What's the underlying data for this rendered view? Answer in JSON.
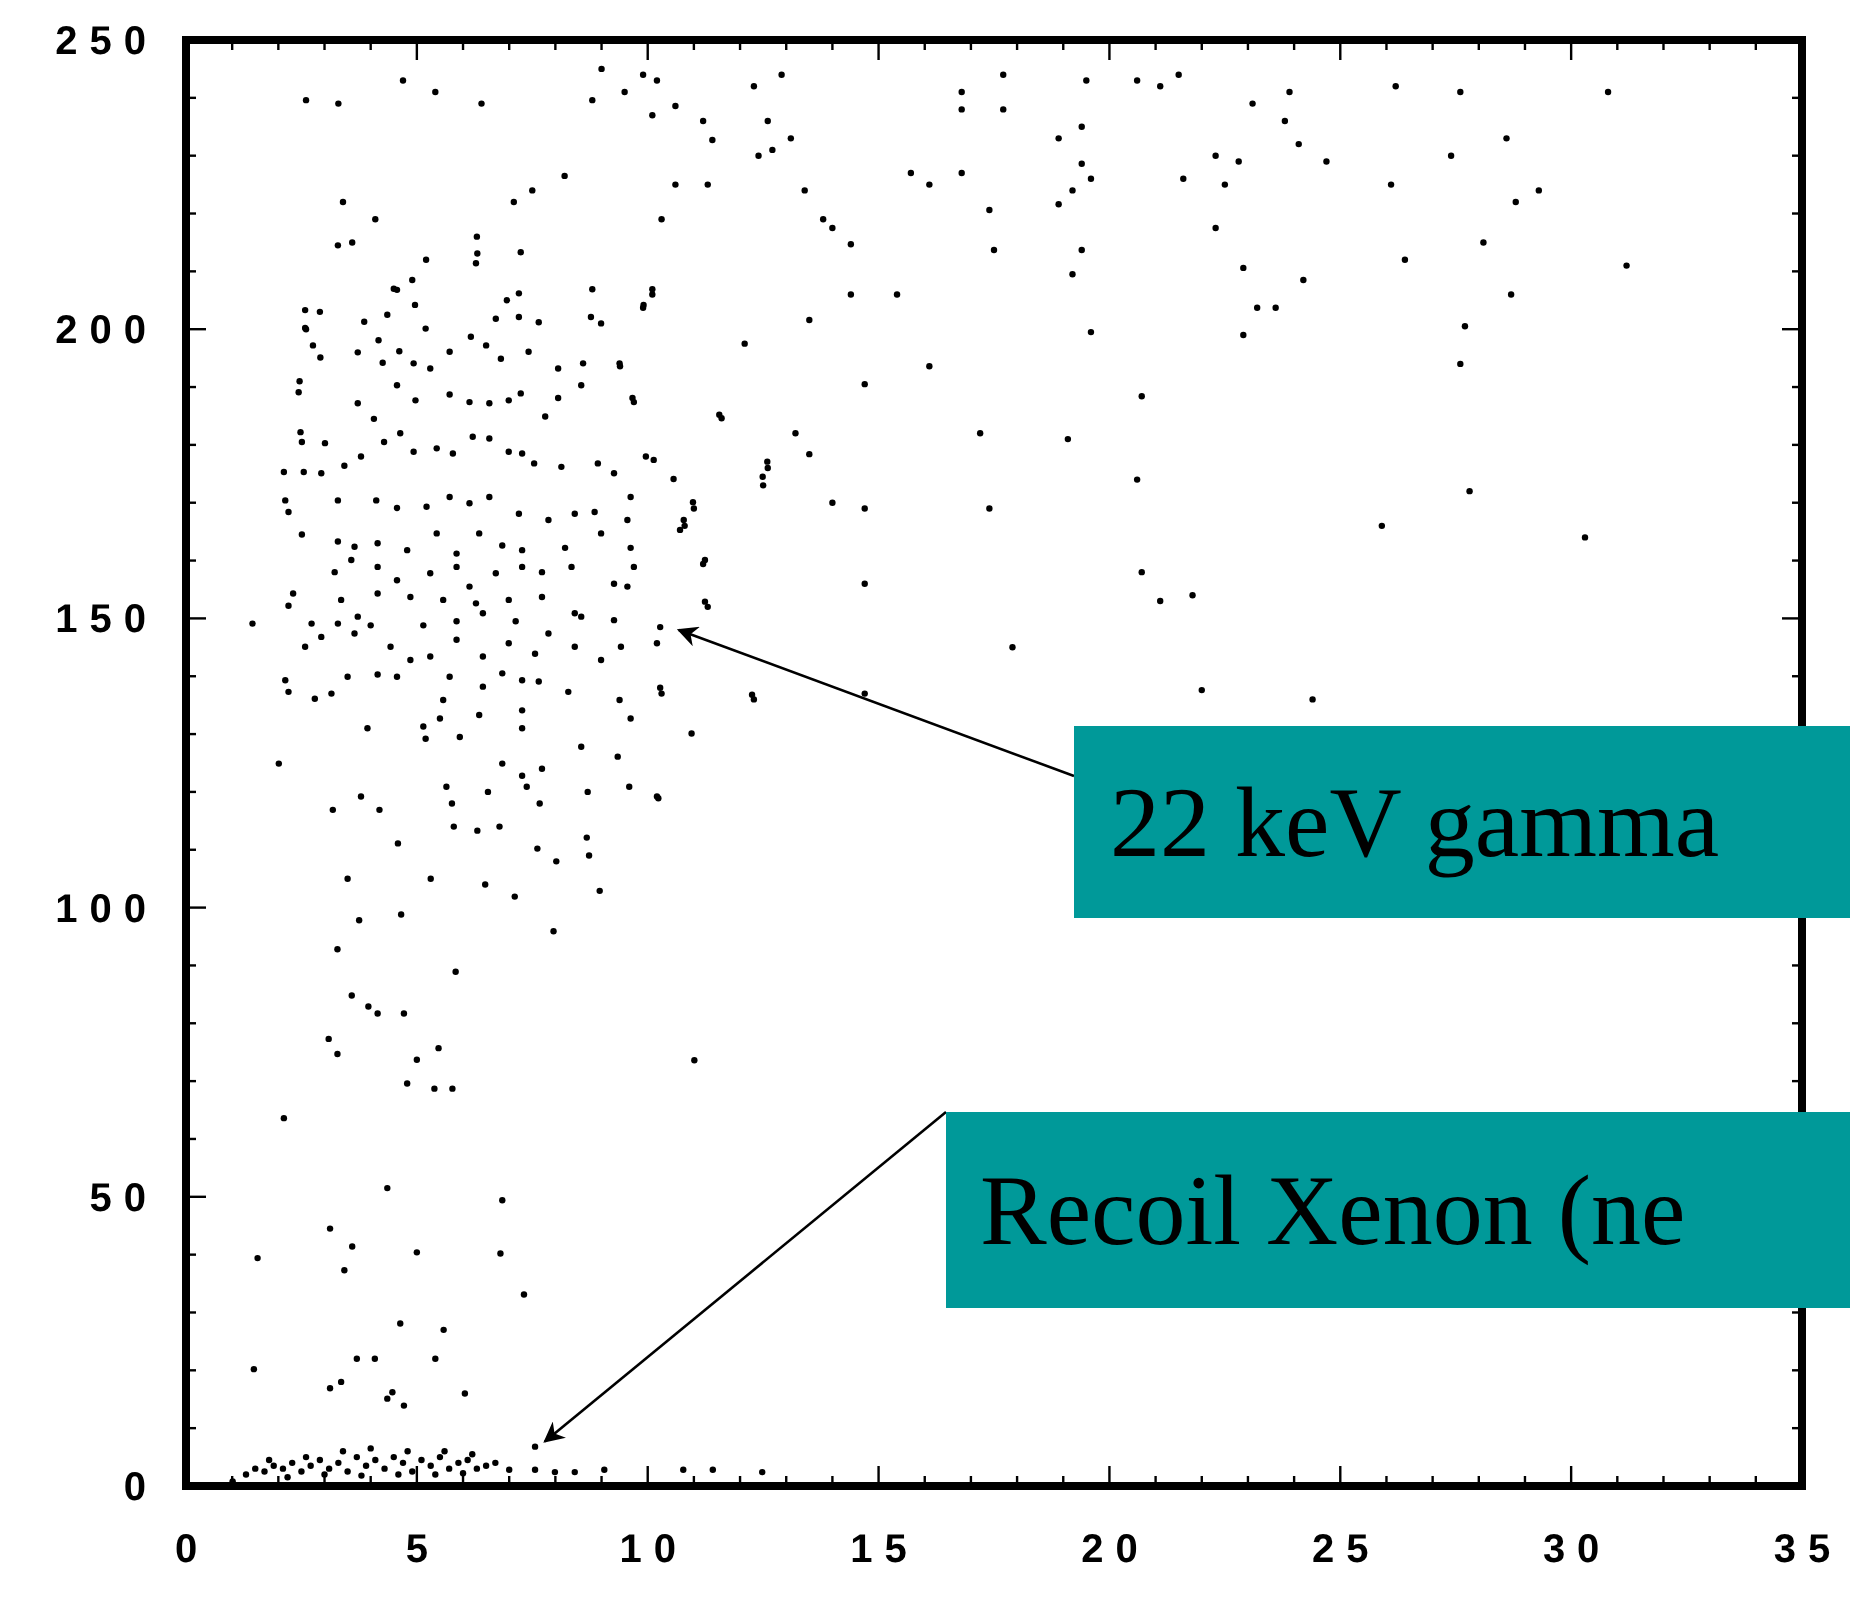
{
  "chart_data": {
    "type": "scatter",
    "marker": "circle",
    "grid": false,
    "xlim": [
      0,
      35
    ],
    "ylim": [
      0,
      250
    ],
    "xticks": [
      0,
      {
        "value": 1,
        "label": null
      },
      {
        "value": 2,
        "label": null
      },
      {
        "value": 3,
        "label": null
      },
      {
        "value": 4,
        "label": null
      },
      5,
      {
        "value": 6,
        "label": null
      },
      {
        "value": 7,
        "label": null
      },
      {
        "value": 8,
        "label": null
      },
      {
        "value": 9,
        "label": null
      },
      10,
      {
        "value": 11,
        "label": null
      },
      {
        "value": 12,
        "label": null
      },
      {
        "value": 13,
        "label": null
      },
      {
        "value": 14,
        "label": null
      },
      15,
      {
        "value": 16,
        "label": null
      },
      {
        "value": 17,
        "label": null
      },
      {
        "value": 18,
        "label": null
      },
      {
        "value": 19,
        "label": null
      },
      20,
      {
        "value": 21,
        "label": null
      },
      {
        "value": 22,
        "label": null
      },
      {
        "value": 23,
        "label": null
      },
      {
        "value": 24,
        "label": null
      },
      25,
      {
        "value": 26,
        "label": null
      },
      {
        "value": 27,
        "label": null
      },
      {
        "value": 28,
        "label": null
      },
      {
        "value": 29,
        "label": null
      },
      30,
      {
        "value": 31,
        "label": null
      },
      {
        "value": 32,
        "label": null
      },
      {
        "value": 33,
        "label": null
      },
      {
        "value": 34,
        "label": null
      },
      35
    ],
    "yticks": [
      0,
      {
        "value": 10,
        "label": null
      },
      {
        "value": 20,
        "label": null
      },
      {
        "value": 30,
        "label": null
      },
      {
        "value": 40,
        "label": null
      },
      50,
      {
        "value": 60,
        "label": null
      },
      {
        "value": 70,
        "label": null
      },
      {
        "value": 80,
        "label": null
      },
      {
        "value": 90,
        "label": null
      },
      100,
      {
        "value": 110,
        "label": null
      },
      {
        "value": 120,
        "label": null
      },
      {
        "value": 130,
        "label": null
      },
      {
        "value": 140,
        "label": null
      },
      150,
      {
        "value": 160,
        "label": null
      },
      {
        "value": 170,
        "label": null
      },
      {
        "value": 180,
        "label": null
      },
      {
        "value": 190,
        "label": null
      },
      200,
      {
        "value": 210,
        "label": null
      },
      {
        "value": 220,
        "label": null
      },
      {
        "value": 230,
        "label": null
      },
      {
        "value": 240,
        "label": null
      },
      250
    ],
    "annotations": [
      {
        "text": "22 keV gamma",
        "x": 10.5,
        "y": 148
      },
      {
        "text": "Recoil Xenon (ne",
        "x": 7.6,
        "y": 7
      }
    ],
    "series": [
      {
        "color": "#000000",
        "x": [
          30.8,
          31.2,
          30.3,
          27.8,
          25.9,
          27.6,
          27.7,
          28.7,
          28.1,
          28.8,
          29.3,
          28.6,
          27.6,
          26.2,
          27.4,
          26.4,
          26.1,
          23.9,
          23.8,
          24.1,
          24.7,
          23.1,
          22.3,
          22.8,
          22.5,
          22.3,
          22.9,
          23.2,
          23.6,
          24.2,
          22.9,
          21.6,
          21.5,
          21.1,
          20.6,
          19.5,
          19.4,
          18.9,
          19.4,
          19.6,
          19.2,
          18.9,
          19.4,
          19.2,
          19.6,
          20.7,
          19.1,
          20.6,
          20.7,
          21.1,
          21.8,
          22.0,
          24.4,
          17.9,
          17.4,
          17.2,
          17.5,
          17.4,
          17.7,
          17.7,
          16.8,
          16.8,
          16.8,
          16.1,
          15.7,
          16.1,
          14.7,
          14.7,
          14.7,
          14.7,
          15.4,
          14.4,
          14.4,
          14.0,
          13.8,
          13.4,
          13.5,
          12.1,
          11.6,
          13.2,
          13.5,
          12.6,
          12.5,
          14.0,
          12.3,
          13.1,
          12.7,
          12.4,
          12.6,
          12.9,
          12.3,
          11.4,
          11.2,
          10.6,
          10.1,
          10.2,
          9.9,
          9.5,
          11.3,
          10.6,
          10.3,
          10.1,
          9.9,
          9.4,
          9.7,
          11.2,
          11.3,
          10.3,
          11.0,
          10.8,
          2.6,
          3.3,
          4.7,
          5.4,
          6.4,
          7.1,
          7.5,
          6.3,
          8.2,
          8.8,
          9.0,
          3.4,
          3.6,
          4.1,
          5.2,
          4.5,
          4.9,
          2.9,
          2.6,
          3.29,
          6.31,
          7.25,
          6.28,
          4.57,
          2.58,
          3.86,
          4.36,
          4.96,
          5.19,
          6.95,
          7.21,
          8.8,
          10.1,
          9.91,
          8.77,
          8.99,
          6.71,
          7.21,
          7.64,
          2.58,
          2.75,
          2.91,
          3.72,
          4.17,
          4.62,
          4.26,
          4.93,
          5.29,
          5.71,
          6.17,
          6.5,
          6.82,
          7.42,
          8.06,
          8.6,
          8.56,
          9.39,
          2.46,
          2.44,
          3.72,
          4.07,
          4.57,
          4.97,
          5.71,
          6.14,
          6.57,
          6.99,
          7.25,
          7.78,
          8.06,
          9.67,
          2.48,
          2.51,
          3.01,
          2.12,
          2.55,
          2.93,
          3.43,
          3.79,
          4.29,
          4.64,
          4.93,
          5.43,
          5.78,
          6.21,
          6.57,
          6.99,
          7.28,
          7.54,
          8.13,
          8.92,
          9.27,
          9.96,
          10.13,
          10.56,
          11.55,
          12.59,
          12.49,
          2.15,
          2.22,
          3.29,
          4.12,
          4.57,
          5.21,
          5.71,
          6.14,
          6.57,
          7.21,
          7.85,
          8.42,
          8.85,
          9.63,
          9.56,
          10.98,
          10.78,
          2.51,
          3.29,
          3.65,
          4.15,
          4.79,
          5.43,
          5.86,
          6.35,
          6.85,
          7.28,
          8.21,
          8.99,
          9.63,
          10.7,
          3.22,
          3.58,
          4.15,
          4.57,
          5.29,
          5.86,
          6.14,
          6.71,
          7.28,
          7.71,
          8.35,
          9.7,
          11.24,
          2.22,
          2.32,
          3.36,
          4.15,
          4.86,
          5.57,
          6.28,
          6.99,
          7.71,
          8.42,
          9.27,
          9.56,
          11.24,
          1.44,
          2.72,
          3.29,
          3.72,
          4.0,
          5.14,
          5.86,
          6.43,
          7.14,
          7.85,
          8.56,
          9.27,
          10.27,
          10.2,
          2.58,
          2.93,
          3.65,
          4.43,
          4.86,
          5.29,
          5.86,
          6.43,
          6.99,
          7.56,
          8.42,
          8.99,
          9.42,
          2.15,
          2.22,
          2.79,
          3.15,
          3.5,
          4.15,
          4.57,
          5.71,
          6.43,
          6.85,
          7.28,
          7.64,
          8.28,
          9.39,
          12.26,
          10.27,
          5.57,
          6.35,
          7.28,
          5.5,
          5.14,
          5.93,
          5.19,
          7.28,
          9.63,
          3.93,
          10.95,
          2.01,
          6.85,
          7.28,
          7.71,
          8.56,
          9.35,
          9.6,
          5.64,
          6.54,
          3.79,
          8.7,
          10.2,
          3.18,
          4.19,
          5.76,
          7.38,
          7.66,
          10.23,
          5.8,
          6.31,
          6.79,
          8.68,
          8.73,
          7.61,
          8.02,
          4.59,
          3.5,
          5.3,
          6.48,
          7.12,
          8.96,
          3.75,
          4.66,
          7.96,
          3.28,
          5.84,
          3.59,
          3.95,
          4.15,
          4.72,
          3.09,
          3.28,
          5.0,
          5.47,
          4.79,
          5.38,
          5.77,
          11.01,
          2.12,
          4.36,
          6.85,
          3.12,
          3.6,
          1.55,
          3.43,
          5.0,
          6.81,
          7.32,
          4.64,
          5.58,
          1.47,
          3.7,
          4.09,
          5.4,
          3.12,
          3.36,
          4.36,
          4.47,
          4.72,
          6.04,
          7.56,
          1.01,
          7.0,
          7.56,
          7.99,
          8.42,
          9.06,
          10.77,
          11.41,
          12.48,
          1.3,
          1.5,
          1.7,
          1.9,
          2.1,
          2.3,
          2.5,
          2.7,
          2.9,
          3.1,
          3.3,
          3.5,
          3.7,
          3.9,
          4.1,
          4.3,
          4.5,
          4.7,
          4.9,
          5.1,
          5.3,
          5.5,
          5.7,
          5.9,
          6.1,
          6.3,
          6.5,
          6.7,
          1.8,
          2.6,
          3.4,
          4.0,
          4.8,
          5.6,
          6.2,
          2.2,
          3.0,
          3.8,
          4.6,
          5.4,
          6.0
        ],
        "values": [
          241,
          211,
          164,
          172,
          166,
          194,
          200.5,
          206,
          215,
          222,
          224,
          233,
          241,
          242,
          230,
          212,
          225,
          241,
          236,
          232,
          229,
          239,
          230,
          229,
          225,
          217.5,
          210.6,
          203.7,
          203.7,
          208.5,
          199,
          226,
          244,
          242,
          243,
          243,
          235,
          233,
          228.6,
          226,
          224,
          221.6,
          213.7,
          209.5,
          199.5,
          188.4,
          181,
          174,
          158,
          153,
          154,
          137.6,
          136,
          145,
          169,
          182,
          213.7,
          220.6,
          238,
          244,
          238,
          241,
          227,
          225,
          227,
          193.6,
          190.5,
          169,
          156,
          137,
          206,
          206,
          214.7,
          217.5,
          219,
          224,
          201.6,
          197.5,
          184.6,
          182,
          178.4,
          176,
          173,
          170,
          136,
          233,
          231,
          230,
          236,
          244,
          242,
          232.7,
          236,
          238.6,
          237,
          243,
          244,
          241,
          225,
          225,
          219,
          206,
          203.7,
          193.6,
          187.4,
          159.4,
          152,
          137,
          169,
          166,
          239.6,
          239,
          243,
          241,
          239,
          222,
          224,
          216,
          226.5,
          239.6,
          245,
          222,
          215,
          219,
          212,
          207,
          208.5,
          203,
          200,
          214.5,
          213.1,
          213.3,
          211.4,
          206.8,
          203.3,
          201.3,
          202.5,
          204.2,
          200.1,
          205,
          206.2,
          206.9,
          206.9,
          204.2,
          202.1,
          201,
          201.8,
          202.1,
          201.2,
          200.2,
          197.2,
          195.1,
          196,
          198.1,
          196.2,
          194.2,
          194.1,
          193.2,
          196.1,
          198.7,
          197.2,
          194.9,
          196.1,
          193.2,
          194.1,
          190.3,
          194.1,
          191,
          189.1,
          187.2,
          184.5,
          190.3,
          187.7,
          188.7,
          187.4,
          187.2,
          187.7,
          188.9,
          184.9,
          188.1,
          188.1,
          182.2,
          180.5,
          180.3,
          175.3,
          175.3,
          175.1,
          176.4,
          178,
          180.5,
          182,
          178.8,
          179.4,
          178.5,
          181.4,
          181.1,
          178.8,
          178.5,
          176.8,
          176.2,
          176.8,
          175.1,
          178,
          177.4,
          174.1,
          185.2,
          177.1,
          174.5,
          170.4,
          168.4,
          170.4,
          170.4,
          169.1,
          169.3,
          171,
          169.9,
          171,
          168.1,
          167,
          168.1,
          168.4,
          171,
          167,
          170.1,
          167,
          164.5,
          163.3,
          162.4,
          163,
          161.8,
          164.7,
          161.2,
          164.7,
          162.6,
          161.8,
          162.2,
          164.7,
          162.2,
          165.3,
          158,
          160.1,
          158.9,
          156.6,
          157.8,
          158.9,
          155.5,
          157.8,
          158.9,
          158,
          158.9,
          158.9,
          160.1,
          152.2,
          154.3,
          153.2,
          154.3,
          153.7,
          153.2,
          152.6,
          153.2,
          153.7,
          150.9,
          156,
          155.5,
          152.9,
          149.1,
          149.1,
          149.1,
          150.3,
          148.8,
          148.8,
          149.5,
          150.9,
          149.5,
          147.4,
          150.3,
          149.7,
          148.5,
          145.7,
          145.1,
          146.8,
          147.4,
          145.1,
          142.8,
          143.4,
          146.3,
          143.4,
          145.7,
          143.9,
          145.1,
          142.8,
          145.1,
          139.3,
          137.3,
          136.1,
          137,
          139.9,
          140.3,
          139.9,
          139.9,
          138.2,
          140.5,
          139.3,
          139.1,
          137.3,
          135.9,
          136.8,
          138,
          135.9,
          133.3,
          134.1,
          132.7,
          131.3,
          129.5,
          129.2,
          131,
          132.7,
          131,
          130.1,
          124.9,
          124.9,
          122.8,
          124,
          127.8,
          126.1,
          120.9,
          120.9,
          120,
          119.2,
          120,
          119.2,
          116.9,
          116.9,
          118,
          120.9,
          118,
          118.9,
          114,
          113.3,
          114,
          112.1,
          109,
          110.2,
          108,
          111.1,
          105,
          105,
          104,
          101.9,
          102.9,
          97.8,
          98.8,
          95.9,
          92.8,
          88.9,
          84.8,
          82.9,
          81.7,
          81.7,
          77.3,
          74.7,
          73.7,
          75.7,
          69.6,
          68.7,
          68.7,
          73.6,
          63.6,
          51.5,
          49.4,
          44.5,
          41.4,
          39.4,
          37.3,
          40.4,
          40.2,
          33.1,
          28.1,
          27,
          20.2,
          22,
          22,
          22,
          16.9,
          18,
          15.1,
          16.2,
          13.9,
          16,
          6.8,
          0.8,
          2.8,
          2.8,
          2.4,
          2.4,
          2.8,
          2.8,
          2.8,
          2.4,
          2,
          3,
          2.5,
          3.5,
          3,
          4,
          2.5,
          3.5,
          4.5,
          3,
          4,
          2.5,
          5,
          3.5,
          4.5,
          3,
          5,
          4,
          2.5,
          4.5,
          3.5,
          5,
          3,
          4,
          4.5,
          3,
          3.5,
          4,
          4.5,
          5,
          6,
          6.5,
          6,
          6,
          5.5,
          1.5,
          2,
          1.8,
          2,
          2,
          2.2
        ]
      }
    ]
  }
}
